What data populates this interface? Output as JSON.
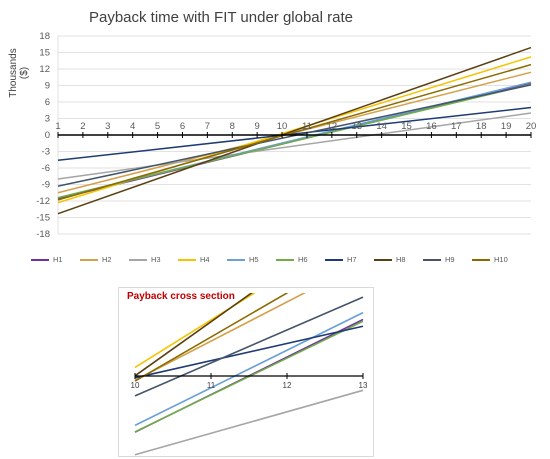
{
  "chart_data": [
    {
      "type": "line",
      "title": "Payback time with FIT under global rate",
      "xlabel": "",
      "ylabel": "Thousands ($)",
      "x": [
        1,
        20
      ],
      "xlim": [
        1,
        20
      ],
      "ylim": [
        -18,
        18
      ],
      "xticks": [
        "1",
        "2",
        "3",
        "4",
        "5",
        "6",
        "7",
        "8",
        "9",
        "10",
        "11",
        "12",
        "13",
        "14",
        "15",
        "16",
        "17",
        "18",
        "19",
        "20"
      ],
      "yticks": [
        "18",
        "15",
        "12",
        "9",
        "6",
        "3",
        "0",
        "-3",
        "-6",
        "-9",
        "-12",
        "-15",
        "-18"
      ],
      "grid": true,
      "legend": "bottom",
      "series": [
        {
          "name": "H1",
          "color": "#7030a0",
          "values": [
            -11.6,
            9.4
          ]
        },
        {
          "name": "H2",
          "color": "#d4a04a",
          "values": [
            -10.5,
            11.4
          ]
        },
        {
          "name": "H3",
          "color": "#a5a5a5",
          "values": [
            -8.0,
            4.0
          ]
        },
        {
          "name": "H4",
          "color": "#f5c400",
          "values": [
            -12.3,
            14.2
          ]
        },
        {
          "name": "H5",
          "color": "#6a9fd8",
          "values": [
            -11.4,
            9.6
          ]
        },
        {
          "name": "H6",
          "color": "#70ad47",
          "values": [
            -11.4,
            9.2
          ]
        },
        {
          "name": "H7",
          "color": "#1f3b73",
          "values": [
            -4.6,
            5.0
          ]
        },
        {
          "name": "H8",
          "color": "#5b3f11",
          "values": [
            -14.3,
            15.9
          ]
        },
        {
          "name": "H9",
          "color": "#44546a",
          "values": [
            -9.3,
            9.1
          ]
        },
        {
          "name": "H10",
          "color": "#8b6b00",
          "values": [
            -11.8,
            12.8
          ]
        }
      ]
    },
    {
      "type": "line",
      "title": "Payback cross section",
      "xlabel": "",
      "ylabel": "",
      "xlim": [
        10,
        13
      ],
      "xticks": [
        "10",
        "11",
        "12",
        "13"
      ],
      "grid": false,
      "legend": "none"
    }
  ]
}
